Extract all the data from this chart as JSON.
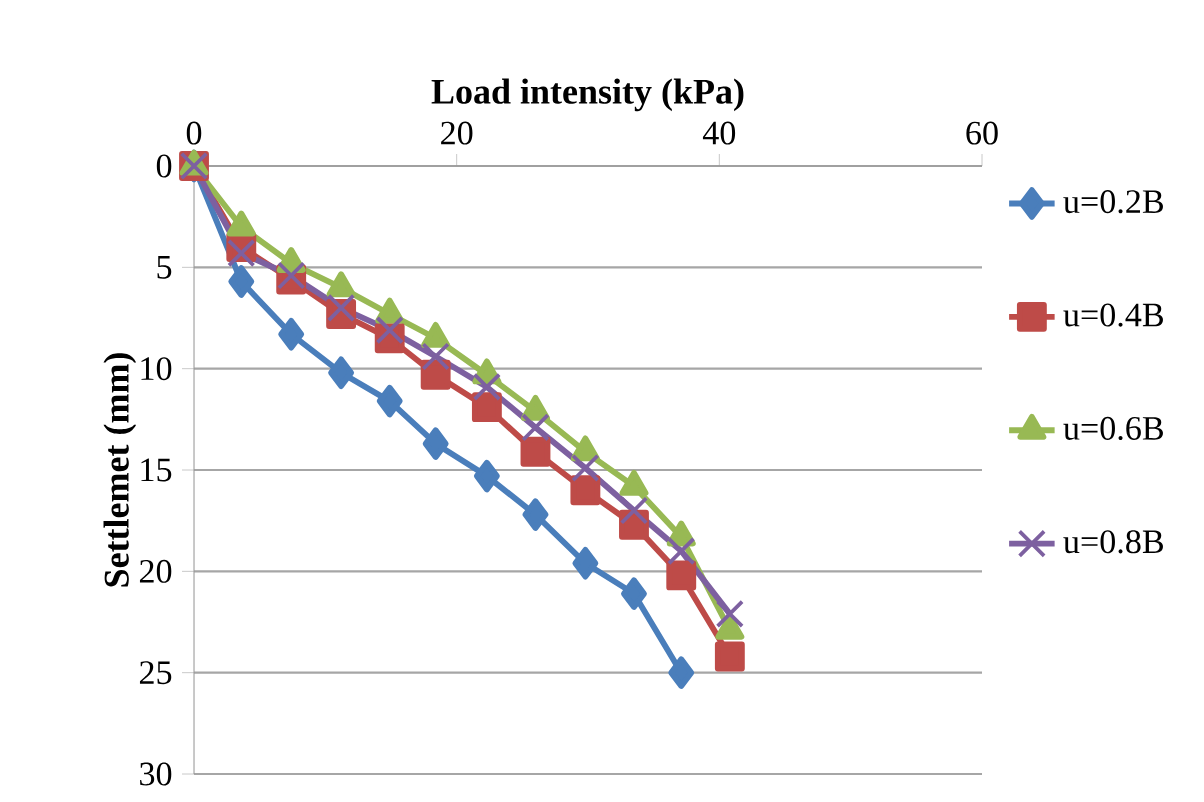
{
  "chart_data": {
    "type": "line",
    "xlabel": "Load intensity (kPa)",
    "ylabel": "Settlemet (mm)",
    "xlim": [
      0,
      60
    ],
    "xticks": [
      0,
      20,
      40,
      60
    ],
    "ylim": [
      30,
      0
    ],
    "yticks": [
      0,
      5,
      10,
      15,
      20,
      25,
      30
    ],
    "grid": "y",
    "legend": "right",
    "line_style": "solid",
    "series": [
      {
        "name": "u=0.2B",
        "color": "#4a7ebb",
        "marker": "diamond",
        "x": [
          0,
          3.6,
          7.4,
          11.2,
          14.9,
          18.4,
          22.3,
          26,
          29.8,
          33.5,
          37.1
        ],
        "values": [
          0,
          5.7,
          8.3,
          10.2,
          11.6,
          13.7,
          15.3,
          17.2,
          19.6,
          21.1,
          25.0
        ]
      },
      {
        "name": "u=0.4B",
        "color": "#be4b48",
        "marker": "square",
        "x": [
          0,
          3.6,
          7.4,
          11.2,
          14.9,
          18.4,
          22.3,
          26,
          29.8,
          33.5,
          37.1,
          40.8
        ],
        "values": [
          0,
          4.0,
          5.6,
          7.3,
          8.5,
          10.3,
          11.9,
          14.1,
          16.0,
          17.7,
          20.2,
          24.2
        ]
      },
      {
        "name": "u=0.6B",
        "color": "#98b954",
        "marker": "triangle",
        "x": [
          0,
          3.6,
          7.4,
          11.2,
          14.9,
          18.4,
          22.3,
          26,
          29.8,
          33.5,
          37.1,
          40.8
        ],
        "values": [
          0,
          3.0,
          4.8,
          6.0,
          7.3,
          8.5,
          10.3,
          12.1,
          14.1,
          15.8,
          18.3,
          22.9
        ]
      },
      {
        "name": "u=0.8B",
        "color": "#7d60a0",
        "marker": "cross",
        "x": [
          0,
          3.6,
          7.4,
          11.2,
          14.9,
          18.4,
          22.3,
          26,
          29.8,
          33.5,
          37.1,
          40.8
        ],
        "values": [
          0,
          4.3,
          5.4,
          7.0,
          8.1,
          9.4,
          10.9,
          12.9,
          14.9,
          17.0,
          19.0,
          22.1
        ]
      }
    ]
  }
}
